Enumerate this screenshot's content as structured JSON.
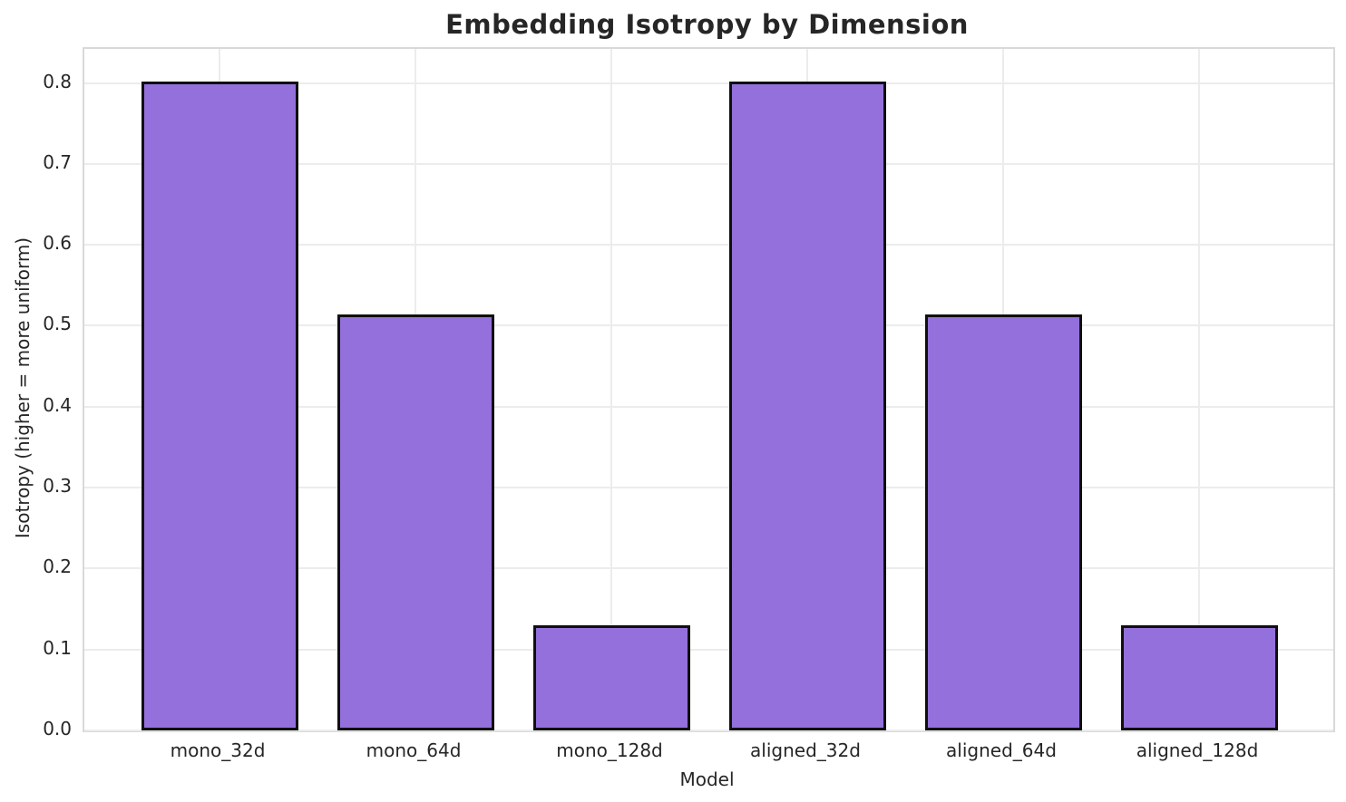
{
  "page": {
    "title": "Embedding Isotropy by Dimension"
  },
  "chart_data": {
    "type": "bar",
    "title": "Embedding Isotropy by Dimension",
    "xlabel": "Model",
    "ylabel": "Isotropy (higher = more uniform)",
    "categories": [
      "mono_32d",
      "mono_64d",
      "mono_128d",
      "aligned_32d",
      "aligned_64d",
      "aligned_128d"
    ],
    "values": [
      0.802,
      0.514,
      0.13,
      0.802,
      0.514,
      0.13
    ],
    "ylim": [
      0,
      0.842
    ],
    "yticks": [
      "0.0",
      "0.1",
      "0.2",
      "0.3",
      "0.4",
      "0.5",
      "0.6",
      "0.7",
      "0.8"
    ],
    "grid": true,
    "legend": "none",
    "colors": {
      "bar_fill": "#9370DB",
      "bar_edge": "#0f0f0f",
      "grid": "#ececec",
      "spine": "#d9d9d9",
      "text": "#262626",
      "background": "#ffffff"
    }
  }
}
